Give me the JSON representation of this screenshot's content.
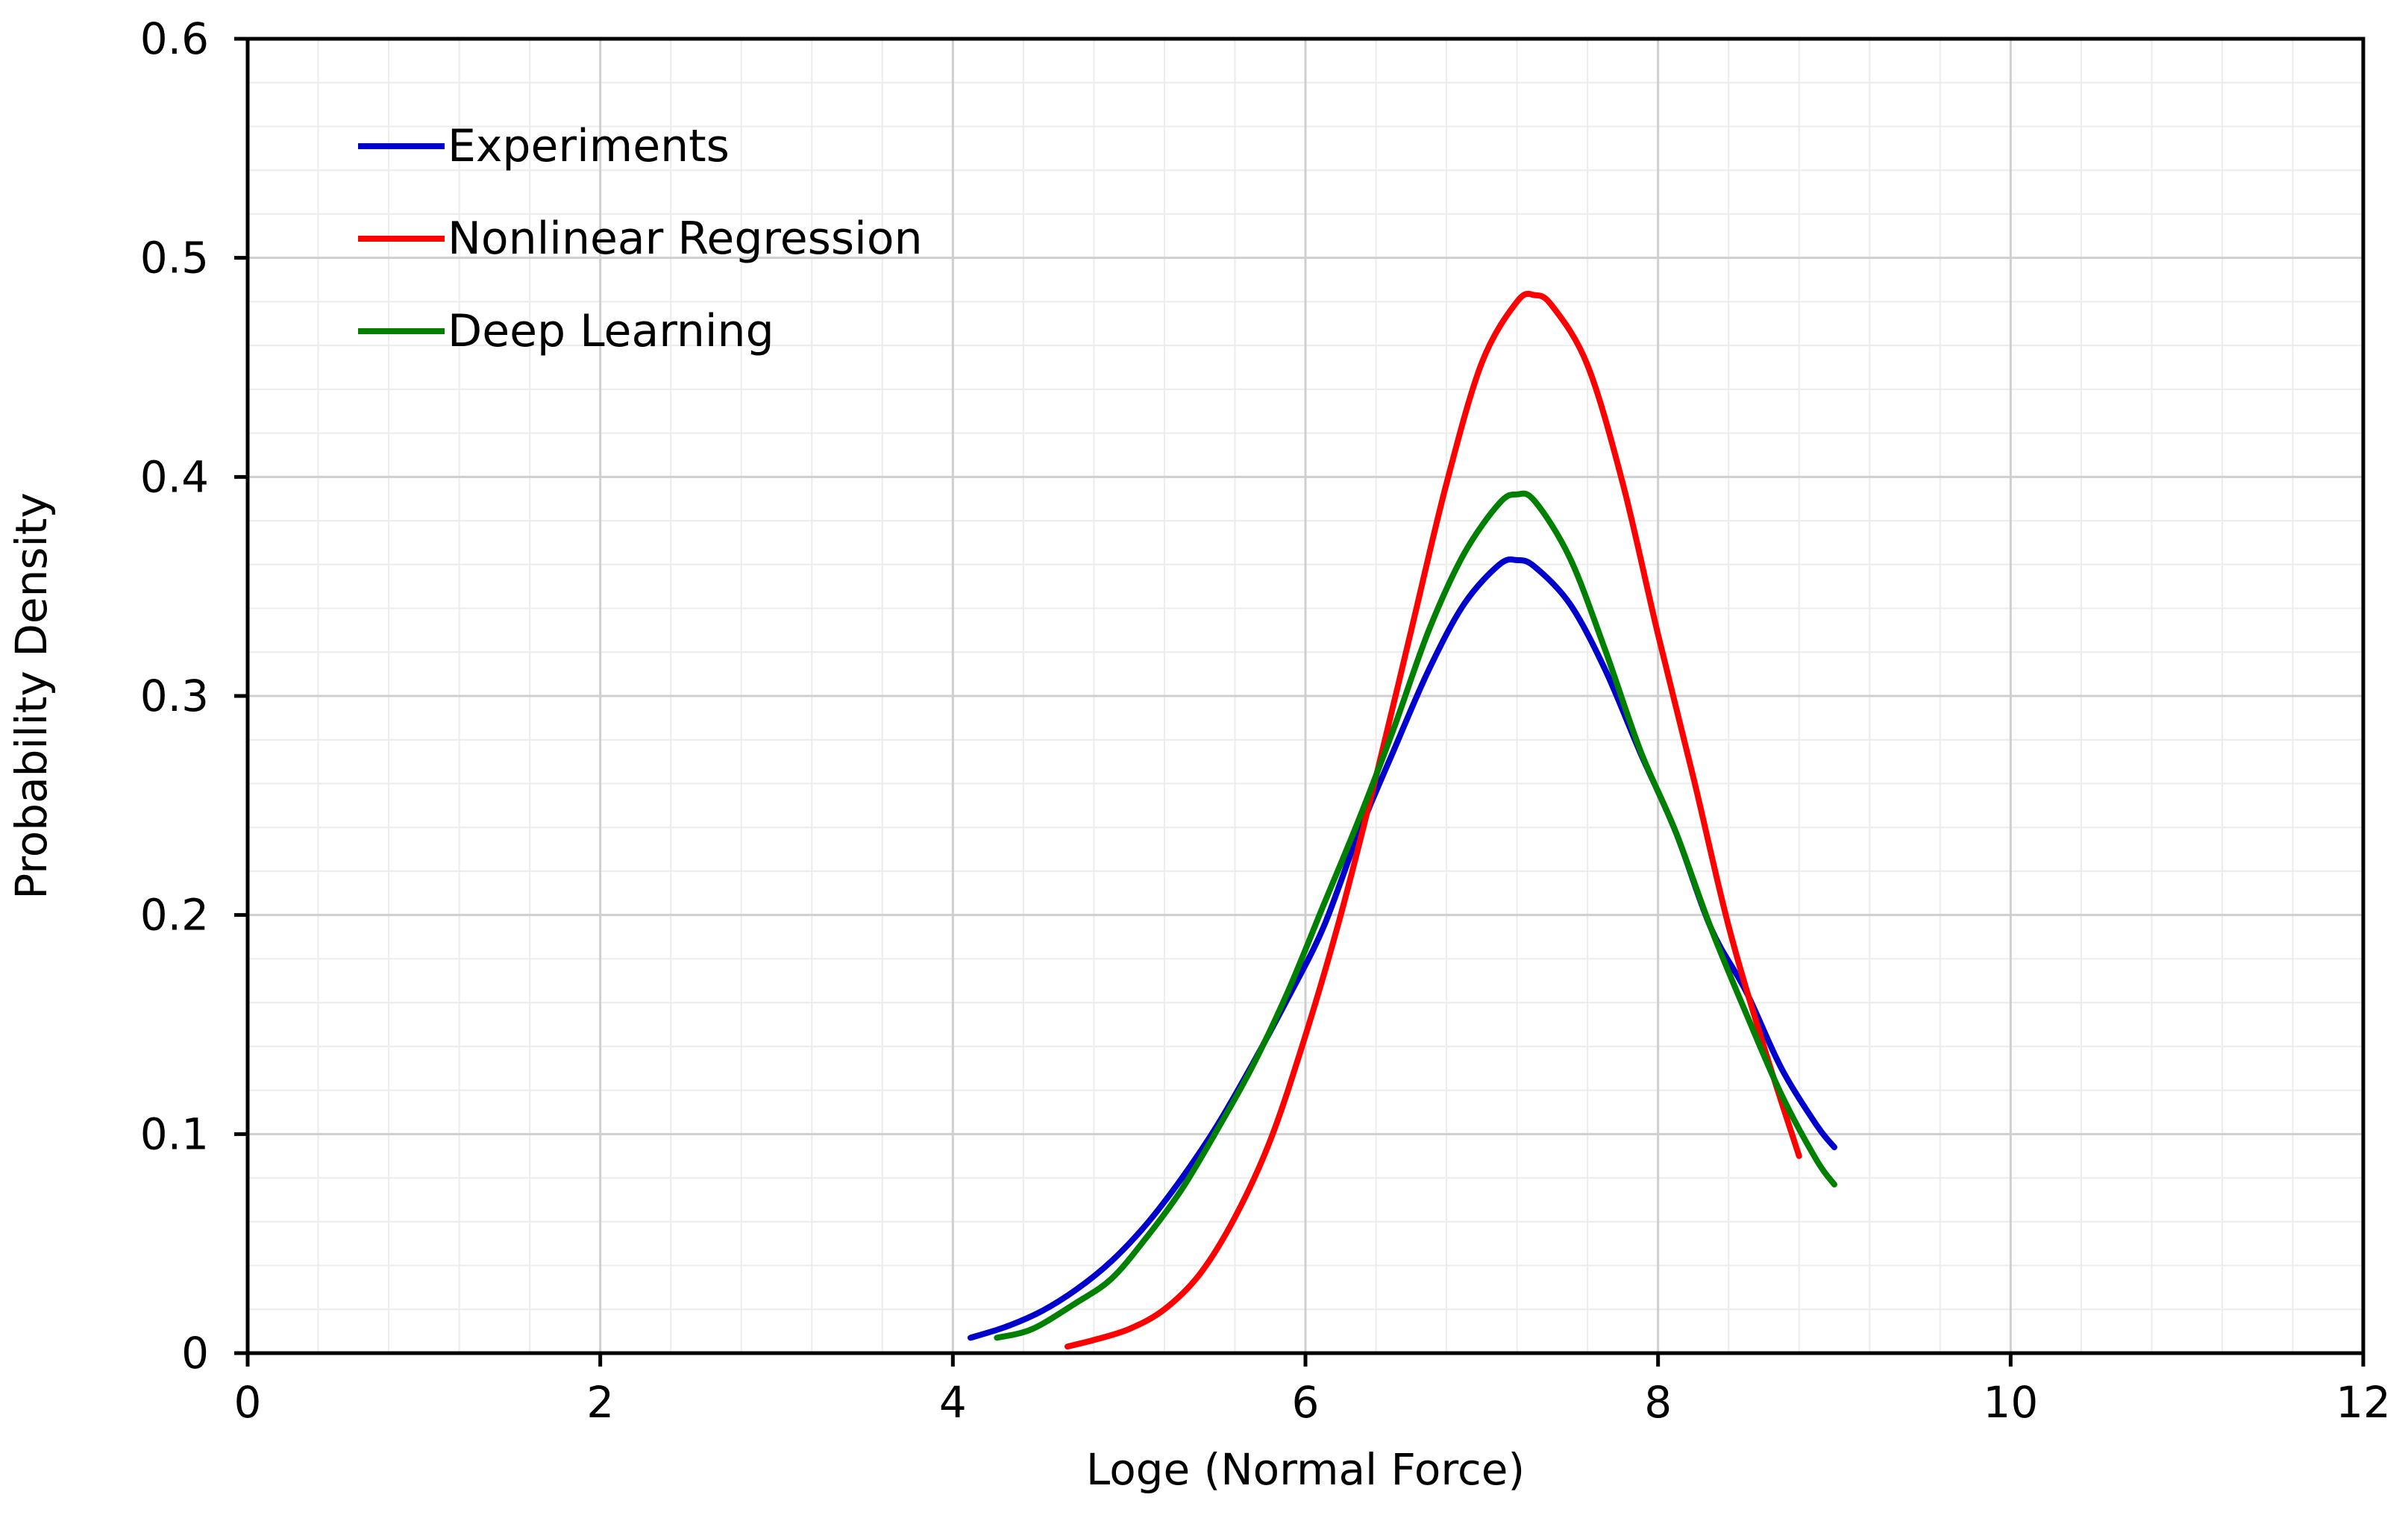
{
  "chart_data": {
    "type": "line",
    "title": "",
    "xlabel": "Loge (Normal Force)",
    "ylabel": "Probability Density",
    "xlim": [
      0,
      12
    ],
    "ylim": [
      0,
      0.6
    ],
    "x_ticks": [
      0,
      2,
      4,
      6,
      8,
      10,
      12
    ],
    "y_ticks": [
      0,
      0.1,
      0.2,
      0.3,
      0.4,
      0.5,
      0.6
    ],
    "x_tick_labels": [
      "0",
      "2",
      "4",
      "6",
      "8",
      "10",
      "12"
    ],
    "y_tick_labels": [
      "0",
      "0.1",
      "0.2",
      "0.3",
      "0.4",
      "0.5",
      "0.6"
    ],
    "grid": true,
    "minor_grid": true,
    "legend_position": "top-left",
    "series": [
      {
        "name": "Experiments",
        "color": "#0000cc",
        "x": [
          4.1,
          4.3,
          4.5,
          4.7,
          4.9,
          5.1,
          5.3,
          5.5,
          5.7,
          5.9,
          6.1,
          6.3,
          6.5,
          6.7,
          6.9,
          7.1,
          7.2,
          7.3,
          7.5,
          7.7,
          7.9,
          8.1,
          8.3,
          8.5,
          8.7,
          8.9,
          9.0
        ],
        "values": [
          0.007,
          0.012,
          0.019,
          0.029,
          0.042,
          0.059,
          0.08,
          0.104,
          0.132,
          0.162,
          0.194,
          0.237,
          0.275,
          0.312,
          0.342,
          0.36,
          0.362,
          0.359,
          0.342,
          0.312,
          0.274,
          0.238,
          0.194,
          0.165,
          0.13,
          0.104,
          0.094
        ]
      },
      {
        "name": "Nonlinear Regression",
        "color": "#ff0000",
        "x": [
          4.65,
          4.8,
          5.0,
          5.2,
          5.4,
          5.6,
          5.8,
          6.0,
          6.2,
          6.4,
          6.6,
          6.8,
          7.0,
          7.2,
          7.3,
          7.4,
          7.6,
          7.8,
          8.0,
          8.2,
          8.4,
          8.6,
          8.8
        ],
        "values": [
          0.003,
          0.006,
          0.011,
          0.02,
          0.036,
          0.062,
          0.097,
          0.145,
          0.2,
          0.263,
          0.33,
          0.397,
          0.452,
          0.48,
          0.483,
          0.478,
          0.451,
          0.397,
          0.328,
          0.263,
          0.195,
          0.14,
          0.09
        ]
      },
      {
        "name": "Deep Learning",
        "color": "#008000",
        "x": [
          4.25,
          4.45,
          4.7,
          4.9,
          5.1,
          5.3,
          5.5,
          5.7,
          5.9,
          6.1,
          6.3,
          6.5,
          6.7,
          6.9,
          7.1,
          7.2,
          7.3,
          7.5,
          7.7,
          7.9,
          8.1,
          8.3,
          8.5,
          8.7,
          8.9,
          9.0
        ],
        "values": [
          0.007,
          0.011,
          0.023,
          0.034,
          0.053,
          0.075,
          0.102,
          0.131,
          0.165,
          0.204,
          0.243,
          0.285,
          0.33,
          0.365,
          0.388,
          0.392,
          0.389,
          0.363,
          0.321,
          0.275,
          0.238,
          0.194,
          0.155,
          0.118,
          0.088,
          0.077
        ]
      }
    ]
  }
}
